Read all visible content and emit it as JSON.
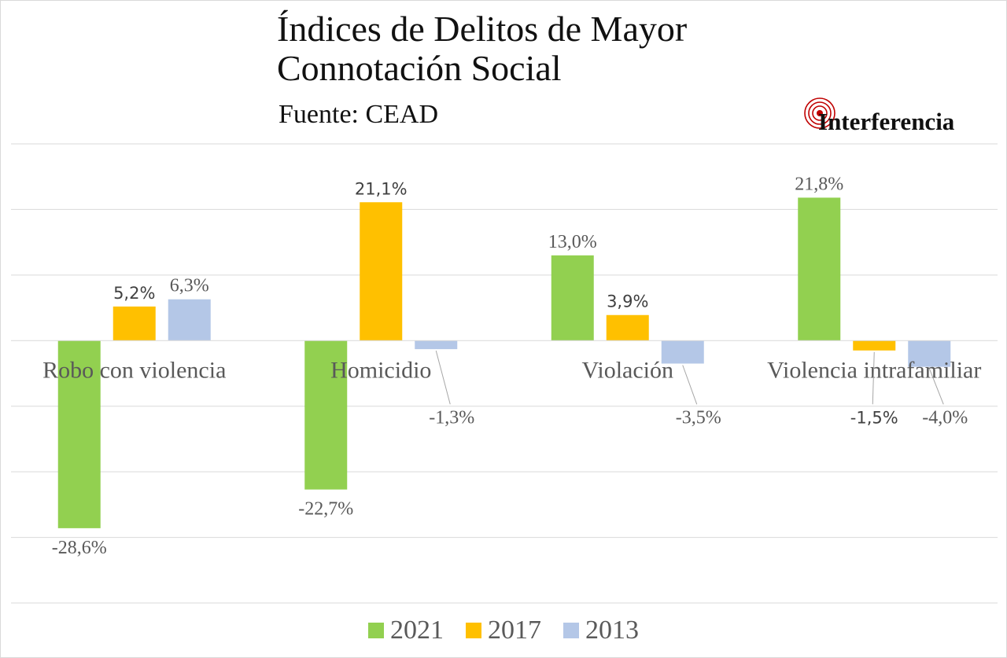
{
  "logo": {
    "text": "Interferencia",
    "accent_color": "#c00000"
  },
  "chart_data": {
    "type": "bar",
    "title": "Índices de Delitos de Mayor\nConnotación Social",
    "subtitle": "Fuente: CEAD",
    "xlabel": "",
    "ylabel": "",
    "categories": [
      "Robo con violencia",
      "Homicidio",
      "Violación",
      "Violencia intrafamiliar"
    ],
    "series": [
      {
        "name": "2021",
        "color": "#92d050",
        "values": [
          -28.6,
          -22.7,
          13.0,
          21.8
        ],
        "labels": [
          "-28,6%",
          "-22,7%",
          "13,0%",
          "21,8%"
        ]
      },
      {
        "name": "2017",
        "color": "#ffc000",
        "values": [
          5.2,
          21.1,
          3.9,
          -1.5
        ],
        "labels": [
          "5,2%",
          "21,1%",
          "3,9%",
          "-1,5%"
        ]
      },
      {
        "name": "2013",
        "color": "#b4c7e7",
        "values": [
          6.3,
          -1.3,
          -3.5,
          -4.0
        ],
        "labels": [
          "6,3%",
          "-1,3%",
          "-3,5%",
          "-4,0%"
        ]
      }
    ],
    "ylim": [
      -40,
      30
    ],
    "grid": true,
    "legend_position": "bottom"
  }
}
